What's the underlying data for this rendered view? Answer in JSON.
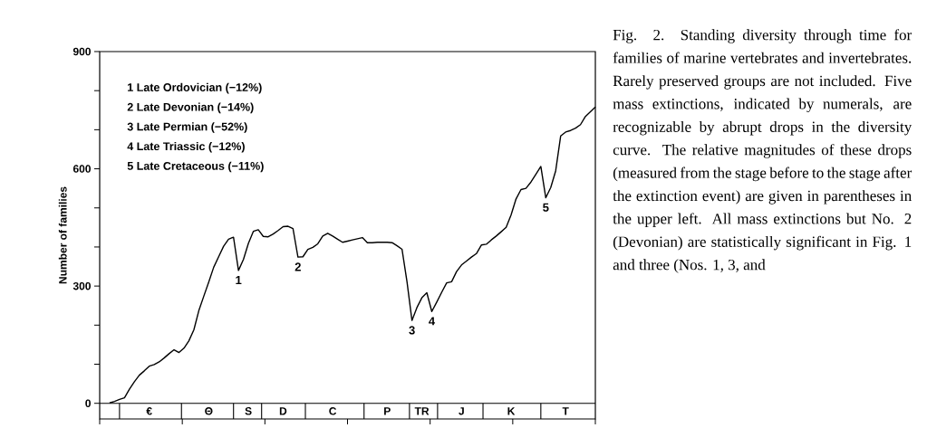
{
  "chart_data": {
    "type": "line",
    "ylabel": "Number of families",
    "categories": [
      null,
      null,
      null,
      null,
      null,
      null,
      null,
      null,
      null,
      null,
      "€",
      null,
      null,
      null,
      null,
      null,
      null,
      null,
      null,
      null,
      null,
      null,
      "Θ",
      null,
      null,
      null,
      null,
      null,
      null,
      null,
      "S",
      null,
      null,
      null,
      null,
      null,
      null,
      "D",
      null,
      null,
      null,
      null,
      null,
      null,
      null,
      null,
      null,
      "C",
      null,
      null,
      null,
      null,
      null,
      null,
      null,
      null,
      null,
      null,
      "P",
      null,
      null,
      null,
      null,
      null,
      null,
      "TR",
      null,
      null,
      null,
      null,
      null,
      null,
      null,
      "J",
      null,
      null,
      null,
      null,
      null,
      null,
      null,
      null,
      null,
      "K",
      null,
      null,
      null,
      null,
      null,
      null,
      null,
      null,
      null,
      null,
      "T",
      null,
      null,
      null,
      null,
      null,
      null
    ],
    "series": [
      {
        "color": "#000000",
        "values": [
          null,
          null,
          1,
          5,
          10,
          14,
          36,
          55,
          72,
          83,
          95,
          99,
          106,
          116,
          127,
          137,
          130,
          141,
          160,
          188,
          237,
          274,
          310,
          348,
          375,
          402,
          420,
          425,
          340,
          368,
          409,
          440,
          444,
          427,
          426,
          433,
          442,
          452,
          453,
          447,
          374,
          375,
          394,
          399,
          408,
          428,
          435,
          428,
          420,
          412,
          415,
          418,
          421,
          424,
          411,
          411,
          412,
          412,
          412,
          411,
          403,
          394,
          311,
          212,
          245,
          270,
          283,
          235,
          259,
          284,
          308,
          311,
          337,
          354,
          364,
          374,
          383,
          405,
          407,
          418,
          428,
          439,
          450,
          482,
          523,
          547,
          550,
          566,
          586,
          606,
          526,
          552,
          595,
          684,
          694,
          698,
          704,
          713,
          734,
          746,
          758
        ]
      }
    ],
    "ylim": [
      -40,
      900
    ],
    "yticks": [
      0,
      {
        "value": 100,
        "label": null
      },
      {
        "value": 200,
        "label": null
      },
      300,
      {
        "value": 400,
        "label": null
      },
      {
        "value": 500,
        "label": null
      },
      600,
      {
        "value": 700,
        "label": null
      },
      {
        "value": 800,
        "label": null
      },
      900
    ],
    "marker": "none",
    "line_style": "solid",
    "annotations": [
      "1 Late Ordovician (−12%)",
      "2 Late Devonian (−14%)",
      "3 Late Permian (−52%)",
      "4 Late Triassic (−12%)",
      "5 Late Cretaceous (−11%)",
      {
        "text": "1",
        "y": 340
      },
      {
        "text": "2",
        "y": 374
      },
      {
        "text": "3",
        "y": 212
      },
      {
        "text": "4",
        "y": 235
      },
      {
        "text": "5",
        "y": 526
      },
      "Fig. 2. Standing diversity through time for families of marine vertebrates and invertebrates. Rarely preserved groups are not included. Five mass extinctions, indicated by numerals, are recognizable by abrupt drops in the diversity curve. The relative magnitudes of these drops (measured from the stage before to the stage after the extinction event) are given in parentheses in the upper left. All mass extinctions but No. 2 (Devonian) are statistically significant in Fig. 1 and three (Nos. 1, 3, and"
    ]
  }
}
